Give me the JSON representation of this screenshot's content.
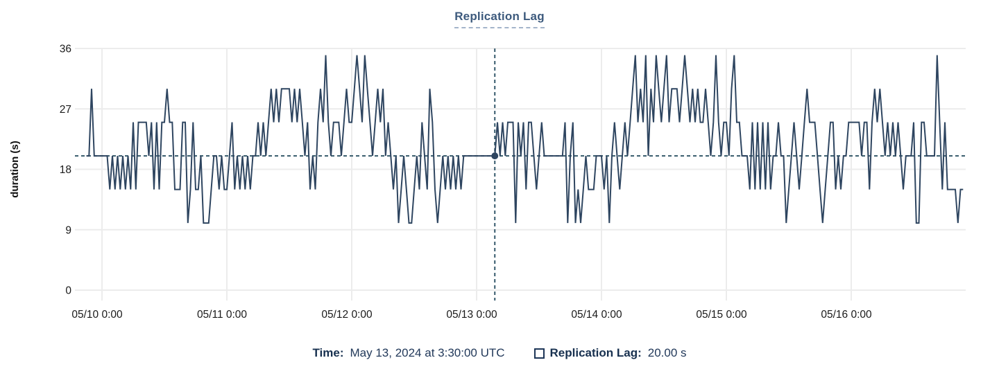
{
  "title": "Replication Lag",
  "y_axis": {
    "label": "duration (s)",
    "ticks": [
      36,
      27,
      18,
      9,
      0
    ]
  },
  "x_axis": {
    "ticks": [
      "05/10 0:00",
      "05/11 0:00",
      "05/12 0:00",
      "05/13 0:00",
      "05/14 0:00",
      "05/15 0:00",
      "05/16 0:00"
    ]
  },
  "footer": {
    "time_label": "Time:",
    "time_value": "May 13, 2024 at 3:30:00 UTC",
    "series_label": "Replication Lag:",
    "series_value": "20.00 s"
  },
  "colors": {
    "line": "#2e4560",
    "crosshair": "#35596b",
    "grid": "#ececec",
    "title": "#3d5a7d",
    "tick_text": "#1a1a1a",
    "footer_text": "#1c3453"
  },
  "chart_data": {
    "type": "line",
    "title": "Replication Lag",
    "ylabel": "duration (s)",
    "xlabel": "",
    "unit": "s",
    "ylim": [
      0,
      36
    ],
    "grid": true,
    "legend_position": "bottom",
    "series_name": "Replication Lag",
    "x_start": "2024-05-09 21:00 UTC",
    "interval_minutes": 30,
    "crosshair": {
      "label": "May 13, 2024 at 3:30:00 UTC",
      "value": 20.0,
      "index": 157,
      "value_text": "20.00 s"
    },
    "values": [
      20,
      20,
      30,
      20,
      20,
      20,
      20,
      20,
      20,
      15,
      20,
      15,
      20,
      15,
      20,
      15,
      20,
      15,
      25,
      15,
      25,
      25,
      25,
      25,
      20,
      25,
      15,
      25,
      15,
      25,
      25,
      30,
      25,
      25,
      15,
      15,
      15,
      25,
      25,
      10,
      15,
      25,
      15,
      15,
      20,
      10,
      10,
      10,
      15,
      20,
      20,
      15,
      20,
      15,
      15,
      20,
      25,
      15,
      20,
      15,
      20,
      15,
      20,
      15,
      20,
      20,
      25,
      20,
      25,
      20,
      25,
      30,
      25,
      30,
      25,
      30,
      30,
      30,
      30,
      25,
      30,
      25,
      30,
      25,
      20,
      25,
      15,
      20,
      15,
      25,
      30,
      25,
      35,
      25,
      20,
      25,
      25,
      25,
      20,
      25,
      30,
      25,
      25,
      30,
      35,
      30,
      25,
      35,
      30,
      25,
      20,
      25,
      30,
      25,
      30,
      20,
      25,
      20,
      15,
      20,
      10,
      15,
      20,
      15,
      10,
      10,
      15,
      20,
      15,
      25,
      20,
      15,
      30,
      25,
      15,
      10,
      15,
      20,
      15,
      20,
      15,
      20,
      15,
      20,
      15,
      20,
      20,
      20,
      20,
      20,
      20,
      20,
      20,
      20,
      20,
      20,
      20,
      20,
      25,
      20,
      25,
      20,
      25,
      25,
      25,
      10,
      25,
      20,
      25,
      15,
      25,
      25,
      20,
      15,
      20,
      25,
      20,
      20,
      20,
      20,
      20,
      20,
      20,
      20,
      25,
      10,
      20,
      25,
      10,
      15,
      10,
      15,
      20,
      15,
      15,
      15,
      20,
      20,
      20,
      15,
      20,
      10,
      20,
      25,
      20,
      15,
      20,
      25,
      20,
      25,
      30,
      35,
      25,
      30,
      25,
      35,
      20,
      30,
      25,
      35,
      30,
      25,
      30,
      35,
      25,
      30,
      30,
      30,
      25,
      30,
      35,
      30,
      25,
      30,
      25,
      30,
      25,
      25,
      30,
      25,
      20,
      25,
      35,
      25,
      20,
      25,
      25,
      20,
      30,
      35,
      25,
      25,
      20,
      20,
      20,
      15,
      25,
      15,
      25,
      15,
      25,
      15,
      25,
      15,
      20,
      20,
      25,
      20,
      20,
      10,
      15,
      20,
      25,
      20,
      15,
      20,
      25,
      30,
      25,
      25,
      25,
      20,
      15,
      10,
      15,
      20,
      25,
      25,
      15,
      20,
      15,
      20,
      20,
      25,
      25,
      25,
      25,
      25,
      20,
      25,
      25,
      15,
      25,
      30,
      25,
      30,
      25,
      20,
      25,
      20,
      25,
      20,
      25,
      20,
      15,
      20,
      20,
      20,
      25,
      10,
      10,
      25,
      25,
      20,
      20,
      20,
      20,
      35,
      25,
      15,
      25,
      15,
      15,
      15,
      15,
      10,
      15,
      15
    ]
  }
}
